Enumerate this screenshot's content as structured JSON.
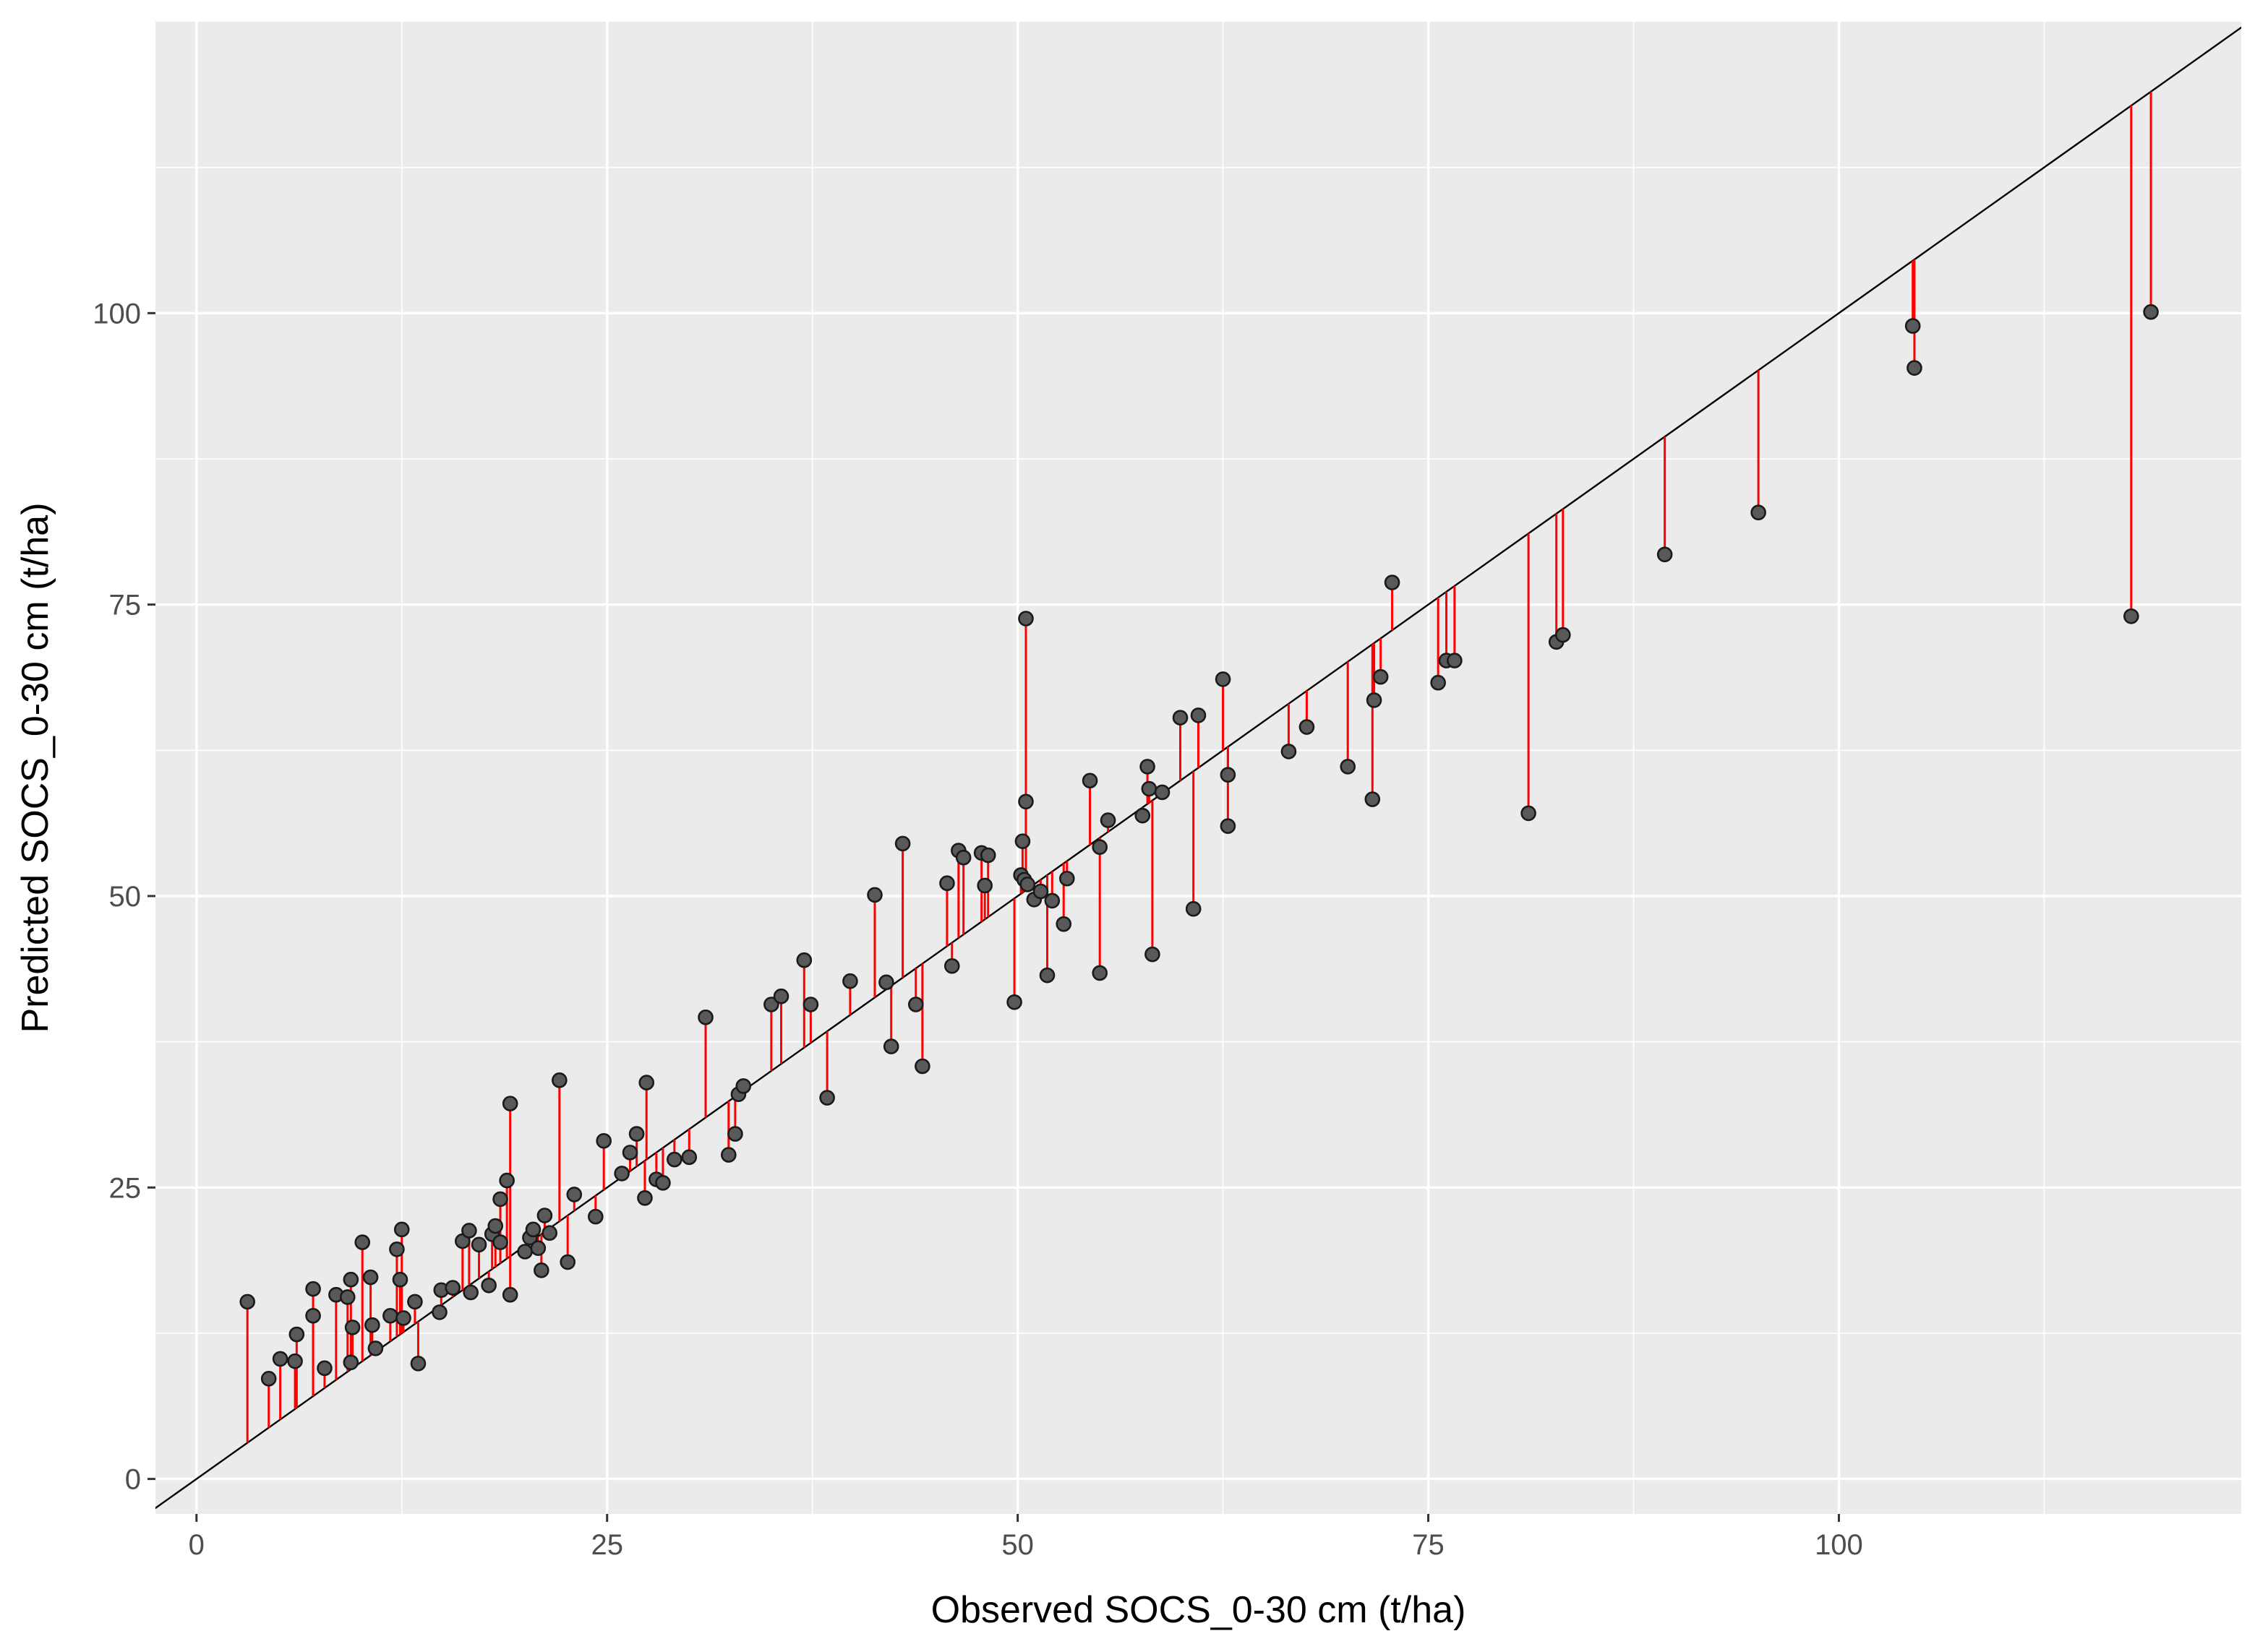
{
  "chart_data": {
    "type": "scatter",
    "title": "",
    "xlabel": "Observed  SOCS_0-30 cm (t/ha)",
    "ylabel": "Predicted SOCS_0-30 cm (t/ha)",
    "xlim": [
      -2.5,
      124.5
    ],
    "ylim": [
      -3.0,
      125.0
    ],
    "xticks": [
      0,
      25,
      50,
      75,
      100
    ],
    "yticks": [
      0,
      25,
      50,
      75,
      100
    ],
    "grid": true,
    "legend": "none",
    "reference_line": "y = x",
    "colors": {
      "panel_background": "#ebebeb",
      "grid": "#ffffff",
      "point_fill": "#595959",
      "point_edge": "#1a1a1a",
      "residual": "#ff0000",
      "reference_line": "#000000"
    },
    "points": [
      {
        "x": 3.1,
        "y": 15.2
      },
      {
        "x": 4.4,
        "y": 8.6
      },
      {
        "x": 5.1,
        "y": 10.3
      },
      {
        "x": 6.0,
        "y": 10.1
      },
      {
        "x": 6.1,
        "y": 12.4
      },
      {
        "x": 7.1,
        "y": 14.0
      },
      {
        "x": 7.1,
        "y": 16.3
      },
      {
        "x": 7.8,
        "y": 9.5
      },
      {
        "x": 8.5,
        "y": 15.8
      },
      {
        "x": 9.2,
        "y": 15.6
      },
      {
        "x": 9.4,
        "y": 17.1
      },
      {
        "x": 9.4,
        "y": 10.0
      },
      {
        "x": 9.5,
        "y": 13.0
      },
      {
        "x": 10.1,
        "y": 20.3
      },
      {
        "x": 10.6,
        "y": 17.3
      },
      {
        "x": 10.7,
        "y": 13.2
      },
      {
        "x": 10.9,
        "y": 11.2
      },
      {
        "x": 11.8,
        "y": 14.0
      },
      {
        "x": 12.2,
        "y": 19.7
      },
      {
        "x": 12.4,
        "y": 17.1
      },
      {
        "x": 12.5,
        "y": 21.4
      },
      {
        "x": 12.6,
        "y": 13.8
      },
      {
        "x": 13.3,
        "y": 15.2
      },
      {
        "x": 13.5,
        "y": 9.9
      },
      {
        "x": 14.8,
        "y": 14.3
      },
      {
        "x": 14.9,
        "y": 16.2
      },
      {
        "x": 15.6,
        "y": 16.4
      },
      {
        "x": 16.2,
        "y": 20.4
      },
      {
        "x": 16.6,
        "y": 21.3
      },
      {
        "x": 16.7,
        "y": 16.0
      },
      {
        "x": 17.2,
        "y": 20.1
      },
      {
        "x": 17.8,
        "y": 16.6
      },
      {
        "x": 18.0,
        "y": 21.0
      },
      {
        "x": 18.2,
        "y": 21.7
      },
      {
        "x": 18.5,
        "y": 20.3
      },
      {
        "x": 18.5,
        "y": 24.0
      },
      {
        "x": 18.9,
        "y": 25.6
      },
      {
        "x": 19.1,
        "y": 15.8
      },
      {
        "x": 19.1,
        "y": 32.2
      },
      {
        "x": 20.0,
        "y": 19.5
      },
      {
        "x": 20.3,
        "y": 20.7
      },
      {
        "x": 20.5,
        "y": 21.4
      },
      {
        "x": 20.8,
        "y": 19.8
      },
      {
        "x": 21.0,
        "y": 17.9
      },
      {
        "x": 21.2,
        "y": 22.6
      },
      {
        "x": 21.5,
        "y": 21.1
      },
      {
        "x": 22.1,
        "y": 34.2
      },
      {
        "x": 22.6,
        "y": 18.6
      },
      {
        "x": 23.0,
        "y": 24.4
      },
      {
        "x": 24.3,
        "y": 22.5
      },
      {
        "x": 24.8,
        "y": 29.0
      },
      {
        "x": 25.9,
        "y": 26.2
      },
      {
        "x": 26.4,
        "y": 28.0
      },
      {
        "x": 26.8,
        "y": 29.6
      },
      {
        "x": 27.3,
        "y": 24.1
      },
      {
        "x": 27.4,
        "y": 34.0
      },
      {
        "x": 28.0,
        "y": 25.7
      },
      {
        "x": 28.4,
        "y": 25.4
      },
      {
        "x": 29.1,
        "y": 27.4
      },
      {
        "x": 30.0,
        "y": 27.6
      },
      {
        "x": 31.0,
        "y": 39.6
      },
      {
        "x": 32.4,
        "y": 27.8
      },
      {
        "x": 32.8,
        "y": 29.6
      },
      {
        "x": 33.0,
        "y": 33.0
      },
      {
        "x": 33.3,
        "y": 33.7
      },
      {
        "x": 35.0,
        "y": 40.7
      },
      {
        "x": 35.6,
        "y": 41.4
      },
      {
        "x": 37.0,
        "y": 44.5
      },
      {
        "x": 37.4,
        "y": 40.7
      },
      {
        "x": 38.4,
        "y": 32.7
      },
      {
        "x": 39.8,
        "y": 42.7
      },
      {
        "x": 41.3,
        "y": 50.1
      },
      {
        "x": 42.0,
        "y": 42.6
      },
      {
        "x": 42.3,
        "y": 37.1
      },
      {
        "x": 43.0,
        "y": 54.5
      },
      {
        "x": 43.8,
        "y": 40.7
      },
      {
        "x": 44.2,
        "y": 35.4
      },
      {
        "x": 45.7,
        "y": 51.1
      },
      {
        "x": 46.0,
        "y": 44.0
      },
      {
        "x": 46.4,
        "y": 53.9
      },
      {
        "x": 46.7,
        "y": 53.3
      },
      {
        "x": 47.8,
        "y": 53.7
      },
      {
        "x": 48.0,
        "y": 50.9
      },
      {
        "x": 48.2,
        "y": 53.5
      },
      {
        "x": 49.8,
        "y": 40.9
      },
      {
        "x": 50.2,
        "y": 51.8
      },
      {
        "x": 50.3,
        "y": 54.7
      },
      {
        "x": 50.4,
        "y": 51.4
      },
      {
        "x": 50.5,
        "y": 58.1
      },
      {
        "x": 50.5,
        "y": 73.8
      },
      {
        "x": 50.6,
        "y": 51.0
      },
      {
        "x": 51.0,
        "y": 49.7
      },
      {
        "x": 51.4,
        "y": 50.4
      },
      {
        "x": 51.8,
        "y": 43.2
      },
      {
        "x": 52.1,
        "y": 49.6
      },
      {
        "x": 52.8,
        "y": 47.6
      },
      {
        "x": 53.0,
        "y": 51.5
      },
      {
        "x": 54.4,
        "y": 59.9
      },
      {
        "x": 55.0,
        "y": 43.4
      },
      {
        "x": 55.0,
        "y": 54.2
      },
      {
        "x": 55.5,
        "y": 56.5
      },
      {
        "x": 57.6,
        "y": 56.9
      },
      {
        "x": 57.9,
        "y": 61.1
      },
      {
        "x": 58.0,
        "y": 59.2
      },
      {
        "x": 58.2,
        "y": 45.0
      },
      {
        "x": 58.8,
        "y": 58.9
      },
      {
        "x": 59.9,
        "y": 65.3
      },
      {
        "x": 60.7,
        "y": 48.9
      },
      {
        "x": 61.0,
        "y": 65.5
      },
      {
        "x": 62.5,
        "y": 68.6
      },
      {
        "x": 62.8,
        "y": 60.4
      },
      {
        "x": 62.8,
        "y": 56.0
      },
      {
        "x": 66.5,
        "y": 62.4
      },
      {
        "x": 67.6,
        "y": 64.5
      },
      {
        "x": 70.1,
        "y": 61.1
      },
      {
        "x": 71.6,
        "y": 58.3
      },
      {
        "x": 71.7,
        "y": 66.8
      },
      {
        "x": 72.1,
        "y": 68.8
      },
      {
        "x": 72.8,
        "y": 76.9
      },
      {
        "x": 75.6,
        "y": 68.3
      },
      {
        "x": 76.1,
        "y": 70.2
      },
      {
        "x": 76.6,
        "y": 70.2
      },
      {
        "x": 81.1,
        "y": 57.1
      },
      {
        "x": 82.8,
        "y": 71.8
      },
      {
        "x": 83.2,
        "y": 72.4
      },
      {
        "x": 89.4,
        "y": 79.3
      },
      {
        "x": 95.1,
        "y": 82.9
      },
      {
        "x": 104.5,
        "y": 98.9
      },
      {
        "x": 104.6,
        "y": 95.3
      },
      {
        "x": 117.8,
        "y": 74.0
      },
      {
        "x": 119.0,
        "y": 100.1
      }
    ]
  }
}
